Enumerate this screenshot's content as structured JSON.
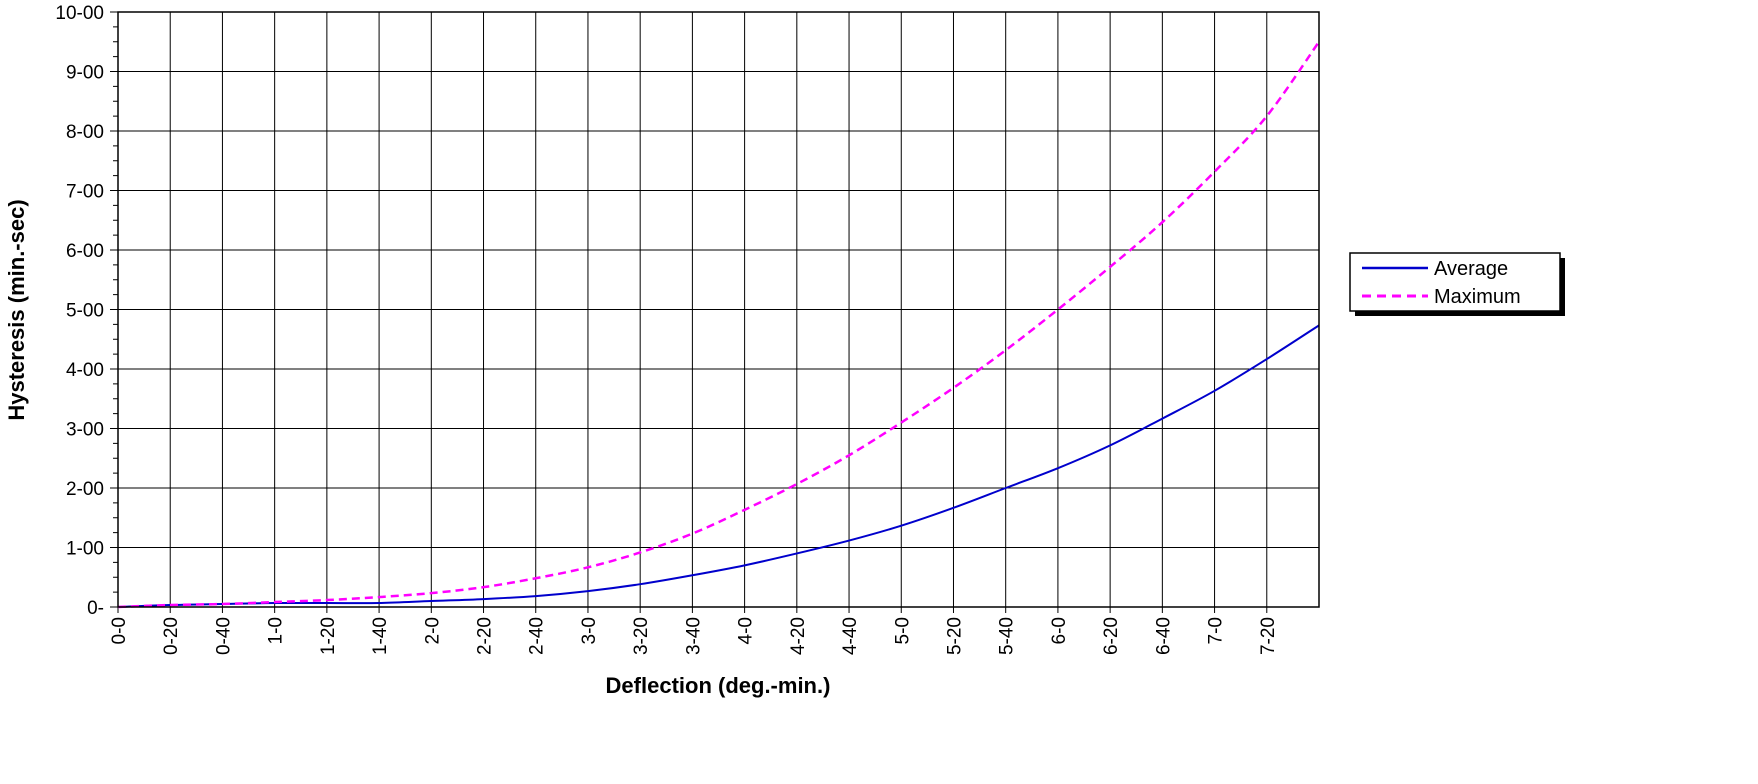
{
  "chart_data": {
    "type": "line",
    "xlabel": "Deflection (deg.-min.)",
    "ylabel": "Hysteresis (min.-sec)",
    "x_ticks": [
      "0-0",
      "0-20",
      "0-40",
      "1-0",
      "1-20",
      "1-40",
      "2-0",
      "2-20",
      "2-40",
      "3-0",
      "3-20",
      "3-40",
      "4-0",
      "4-20",
      "4-40",
      "5-0",
      "5-20",
      "5-40",
      "6-0",
      "6-20",
      "6-40",
      "7-0",
      "7-20"
    ],
    "y_ticks": [
      "0-",
      "1-00",
      "2-00",
      "3-00",
      "4-00",
      "5-00",
      "6-00",
      "7-00",
      "8-00",
      "9-00",
      "10-00"
    ],
    "xlim_minutes": [
      0,
      460
    ],
    "ylim_seconds": [
      0,
      600
    ],
    "grid": true,
    "legend_position": "right",
    "series": [
      {
        "name": "Average",
        "color": "#0000cc",
        "style": "solid",
        "x_minutes": [
          0,
          20,
          40,
          60,
          80,
          100,
          120,
          140,
          160,
          180,
          200,
          220,
          240,
          260,
          280,
          300,
          320,
          340,
          360,
          380,
          400,
          420,
          440,
          460
        ],
        "y_seconds": [
          0,
          2,
          3,
          4,
          4,
          4,
          6,
          8,
          11,
          16,
          23,
          32,
          42,
          54,
          67,
          82,
          100,
          120,
          140,
          163,
          190,
          218,
          250,
          284
        ]
      },
      {
        "name": "Maximum",
        "color": "#ff00ff",
        "style": "dashed",
        "x_minutes": [
          0,
          20,
          40,
          60,
          80,
          100,
          120,
          140,
          160,
          180,
          200,
          220,
          240,
          260,
          280,
          300,
          320,
          340,
          360,
          380,
          400,
          420,
          440,
          460
        ],
        "y_seconds": [
          0,
          2,
          3,
          5,
          7,
          10,
          14,
          20,
          29,
          40,
          55,
          74,
          98,
          124,
          153,
          186,
          221,
          259,
          300,
          343,
          388,
          439,
          495,
          570
        ]
      }
    ]
  }
}
